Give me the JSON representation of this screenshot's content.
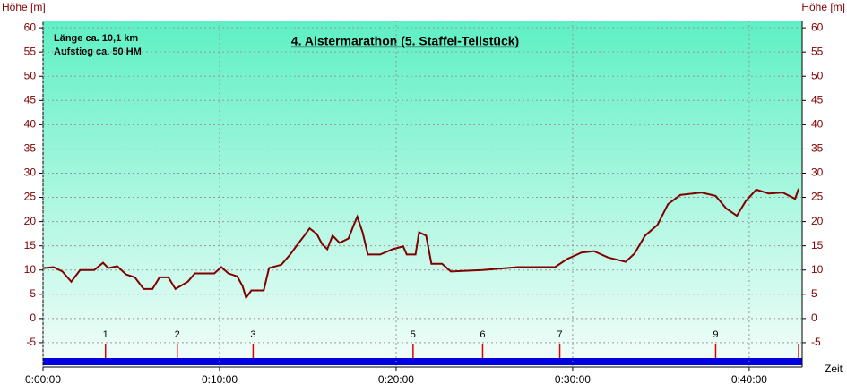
{
  "chart_data": {
    "type": "line",
    "title": "4. Alstermarathon (5. Staffel-Teilstück)",
    "annotations": [
      "Länge ca. 10,1 km",
      "Aufstieg ca. 50 HM"
    ],
    "y_label": "Höhe [m]",
    "y2_label": "Höhe [m]",
    "x_label": "Zeit",
    "color": "#800000",
    "x": [
      0,
      0.6,
      1.1,
      1.6,
      2.1,
      2.9,
      3.4,
      3.7,
      4.2,
      4.7,
      5.2,
      5.7,
      6.2,
      6.6,
      7.1,
      7.5,
      8.2,
      8.6,
      9.7,
      10.1,
      10.5,
      11.0,
      11.3,
      11.5,
      11.8,
      12.5,
      12.8,
      13.5,
      14.0,
      14.4,
      14.8,
      15.1,
      15.5,
      15.8,
      16.1,
      16.4,
      16.8,
      17.3,
      17.6,
      17.8,
      18.1,
      18.4,
      19.1,
      19.8,
      20.4,
      20.6,
      21.1,
      21.3,
      21.7,
      22.0,
      22.6,
      23.1,
      24.9,
      26.9,
      29.0,
      29.7,
      30.5,
      31.2,
      32.0,
      33.0,
      33.5,
      34.1,
      34.8,
      35.4,
      36.1,
      37.3,
      38.1,
      38.7,
      39.3,
      39.8,
      40.4,
      41.1,
      41.9,
      42.6,
      42.8
    ],
    "values": [
      10.4,
      10.6,
      9.7,
      7.6,
      10,
      10,
      11.5,
      10.4,
      10.8,
      9.1,
      8.5,
      6.1,
      6.1,
      8.5,
      8.5,
      6.1,
      7.6,
      9.3,
      9.3,
      10.6,
      9.3,
      8.7,
      6.7,
      4.3,
      5.8,
      5.8,
      10.4,
      11.1,
      13.2,
      15.2,
      17.1,
      18.6,
      17.5,
      15.4,
      14.3,
      17.1,
      15.6,
      16.5,
      19.3,
      21,
      17.8,
      13.2,
      13.2,
      14.3,
      14.9,
      13.2,
      13.2,
      17.8,
      17.1,
      11.3,
      11.3,
      9.7,
      10,
      10.6,
      10.6,
      12.3,
      13.6,
      13.9,
      12.6,
      11.7,
      13.4,
      17.1,
      19.3,
      23.6,
      25.5,
      26,
      25.3,
      22.7,
      21.2,
      24.2,
      26.6,
      25.8,
      26,
      24.7,
      26.8
    ],
    "xlim": [
      0,
      43
    ],
    "xticks": [
      {
        "value": 0,
        "label": "0:00:00"
      },
      {
        "value": 10,
        "label": "0:10:00"
      },
      {
        "value": 20,
        "label": "0:20:00"
      },
      {
        "value": 30,
        "label": "0:30:00"
      },
      {
        "value": 40,
        "label": "0:40:00"
      }
    ],
    "ylim": [
      -10,
      61.5
    ],
    "yticks": [
      -5,
      0,
      5,
      10,
      15,
      20,
      25,
      30,
      35,
      40,
      45,
      50,
      55,
      60
    ],
    "grid": true,
    "markers": {
      "x": [
        3.54,
        7.6,
        11.9,
        20.96,
        24.9,
        29.27,
        38.1,
        42.8
      ],
      "labels": [
        "1",
        "2",
        "3",
        "5",
        "6",
        "7",
        "9",
        null
      ],
      "color": "#e00000"
    }
  }
}
